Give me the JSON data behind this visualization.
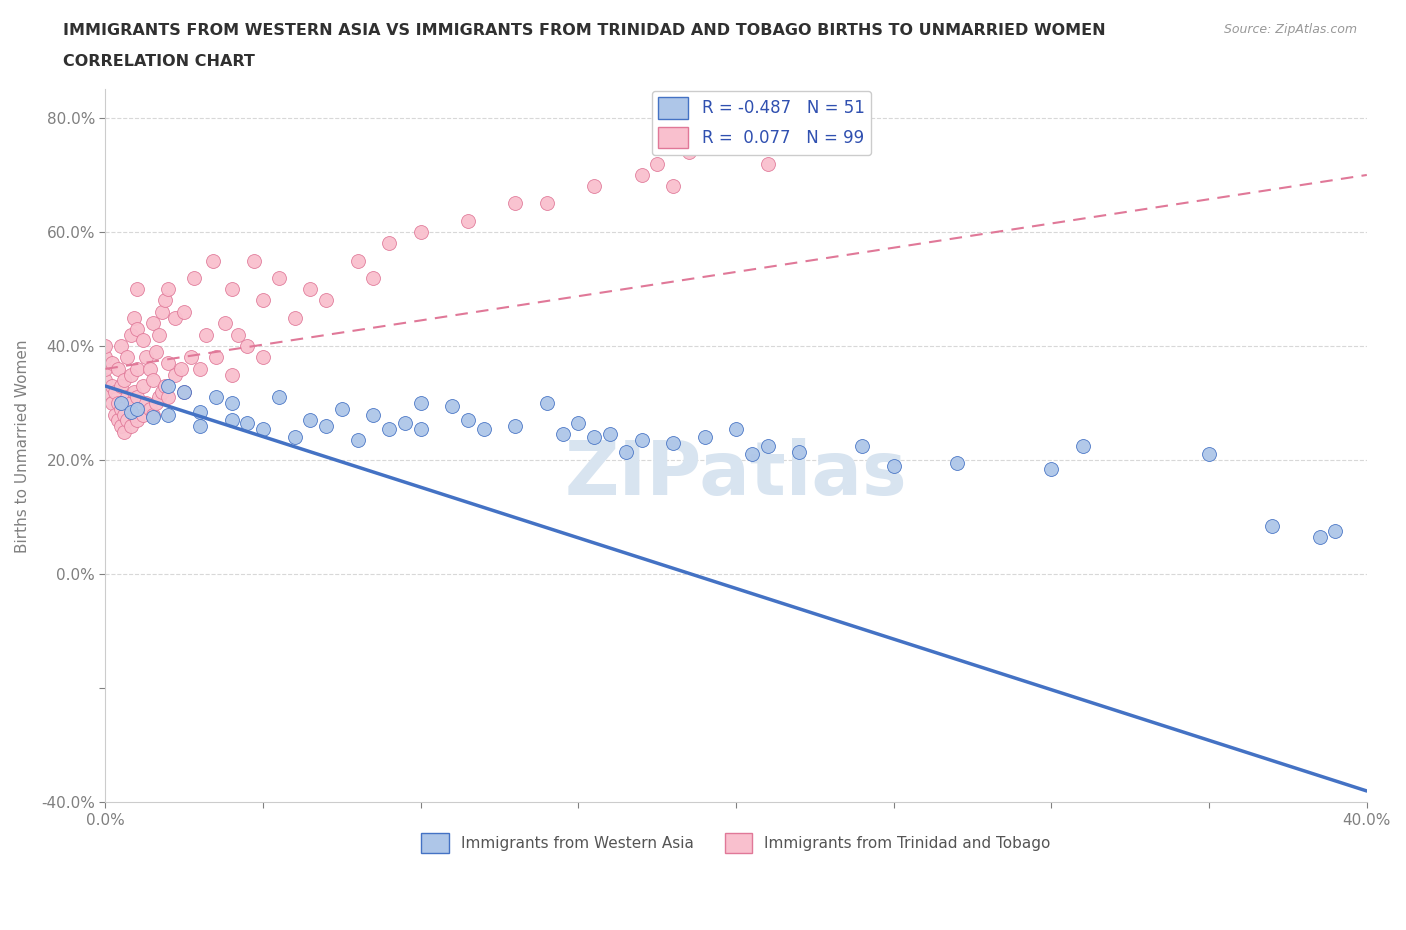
{
  "title_line1": "IMMIGRANTS FROM WESTERN ASIA VS IMMIGRANTS FROM TRINIDAD AND TOBAGO BIRTHS TO UNMARRIED WOMEN",
  "title_line2": "CORRELATION CHART",
  "source": "Source: ZipAtlas.com",
  "watermark": "ZIPatlas",
  "ylabel": "Births to Unmarried Women",
  "xlim": [
    0.0,
    0.4
  ],
  "ylim": [
    -0.4,
    0.85
  ],
  "xticks": [
    0.0,
    0.05,
    0.1,
    0.15,
    0.2,
    0.25,
    0.3,
    0.35,
    0.4
  ],
  "xticklabels": [
    "0.0%",
    "",
    "",
    "",
    "",
    "",
    "",
    "",
    "40.0%"
  ],
  "yticks": [
    -0.4,
    -0.2,
    0.0,
    0.2,
    0.4,
    0.6,
    0.8
  ],
  "yticklabels": [
    "-40.0%",
    "",
    "0.0%",
    "20.0%",
    "40.0%",
    "60.0%",
    "80.0%"
  ],
  "legend_labels": [
    "Immigrants from Western Asia",
    "Immigrants from Trinidad and Tobago"
  ],
  "blue_color": "#aec6e8",
  "blue_line_color": "#4472c4",
  "pink_color": "#f9c0ce",
  "pink_line_color": "#e07898",
  "R_blue": -0.487,
  "N_blue": 51,
  "R_pink": 0.077,
  "N_pink": 99,
  "blue_scatter_x": [
    0.005,
    0.008,
    0.01,
    0.015,
    0.02,
    0.02,
    0.025,
    0.03,
    0.03,
    0.035,
    0.04,
    0.04,
    0.045,
    0.05,
    0.055,
    0.06,
    0.065,
    0.07,
    0.075,
    0.08,
    0.085,
    0.09,
    0.095,
    0.1,
    0.1,
    0.11,
    0.115,
    0.12,
    0.13,
    0.14,
    0.145,
    0.15,
    0.155,
    0.16,
    0.165,
    0.17,
    0.18,
    0.19,
    0.2,
    0.205,
    0.21,
    0.22,
    0.24,
    0.25,
    0.27,
    0.3,
    0.31,
    0.35,
    0.37,
    0.385,
    0.39
  ],
  "blue_scatter_y": [
    0.3,
    0.285,
    0.29,
    0.275,
    0.33,
    0.28,
    0.32,
    0.26,
    0.285,
    0.31,
    0.27,
    0.3,
    0.265,
    0.255,
    0.31,
    0.24,
    0.27,
    0.26,
    0.29,
    0.235,
    0.28,
    0.255,
    0.265,
    0.3,
    0.255,
    0.295,
    0.27,
    0.255,
    0.26,
    0.3,
    0.245,
    0.265,
    0.24,
    0.245,
    0.215,
    0.235,
    0.23,
    0.24,
    0.255,
    0.21,
    0.225,
    0.215,
    0.225,
    0.19,
    0.195,
    0.185,
    0.225,
    0.21,
    0.085,
    0.065,
    0.075
  ],
  "pink_scatter_x": [
    0.0,
    0.0,
    0.0,
    0.0,
    0.0,
    0.002,
    0.002,
    0.002,
    0.003,
    0.003,
    0.004,
    0.004,
    0.004,
    0.005,
    0.005,
    0.005,
    0.005,
    0.006,
    0.006,
    0.006,
    0.007,
    0.007,
    0.007,
    0.008,
    0.008,
    0.008,
    0.008,
    0.009,
    0.009,
    0.009,
    0.01,
    0.01,
    0.01,
    0.01,
    0.01,
    0.012,
    0.012,
    0.012,
    0.013,
    0.013,
    0.014,
    0.014,
    0.015,
    0.015,
    0.015,
    0.016,
    0.016,
    0.017,
    0.017,
    0.018,
    0.018,
    0.019,
    0.019,
    0.02,
    0.02,
    0.02,
    0.022,
    0.022,
    0.024,
    0.025,
    0.025,
    0.027,
    0.028,
    0.03,
    0.032,
    0.034,
    0.035,
    0.038,
    0.04,
    0.04,
    0.042,
    0.045,
    0.047,
    0.05,
    0.05,
    0.055,
    0.06,
    0.065,
    0.07,
    0.08,
    0.085,
    0.09,
    0.1,
    0.115,
    0.13,
    0.14,
    0.155,
    0.17,
    0.175,
    0.18,
    0.185,
    0.19,
    0.2,
    0.21,
    0.215,
    0.22,
    0.225,
    0.23,
    0.235
  ],
  "pink_scatter_y": [
    0.32,
    0.34,
    0.36,
    0.38,
    0.4,
    0.3,
    0.33,
    0.37,
    0.28,
    0.32,
    0.27,
    0.3,
    0.36,
    0.26,
    0.29,
    0.33,
    0.4,
    0.25,
    0.28,
    0.34,
    0.27,
    0.31,
    0.38,
    0.26,
    0.3,
    0.35,
    0.42,
    0.28,
    0.32,
    0.45,
    0.27,
    0.31,
    0.36,
    0.43,
    0.5,
    0.28,
    0.33,
    0.41,
    0.3,
    0.38,
    0.29,
    0.36,
    0.28,
    0.34,
    0.44,
    0.3,
    0.39,
    0.31,
    0.42,
    0.32,
    0.46,
    0.33,
    0.48,
    0.31,
    0.37,
    0.5,
    0.35,
    0.45,
    0.36,
    0.32,
    0.46,
    0.38,
    0.52,
    0.36,
    0.42,
    0.55,
    0.38,
    0.44,
    0.35,
    0.5,
    0.42,
    0.4,
    0.55,
    0.38,
    0.48,
    0.52,
    0.45,
    0.5,
    0.48,
    0.55,
    0.52,
    0.58,
    0.6,
    0.62,
    0.65,
    0.65,
    0.68,
    0.7,
    0.72,
    0.68,
    0.74,
    0.76,
    0.78,
    0.72,
    0.75,
    0.8,
    0.76,
    0.82,
    0.78
  ],
  "blue_trend_x": [
    0.0,
    0.4
  ],
  "blue_trend_y": [
    0.33,
    -0.38
  ],
  "pink_trend_x": [
    0.0,
    0.4
  ],
  "pink_trend_y": [
    0.36,
    0.7
  ],
  "title_color": "#303030",
  "axis_color": "#808080",
  "label_color": "#4472c4",
  "watermark_color": "#d8e4f0",
  "grid_color": "#d8d8d8",
  "legend_text_color": "#3050b0"
}
